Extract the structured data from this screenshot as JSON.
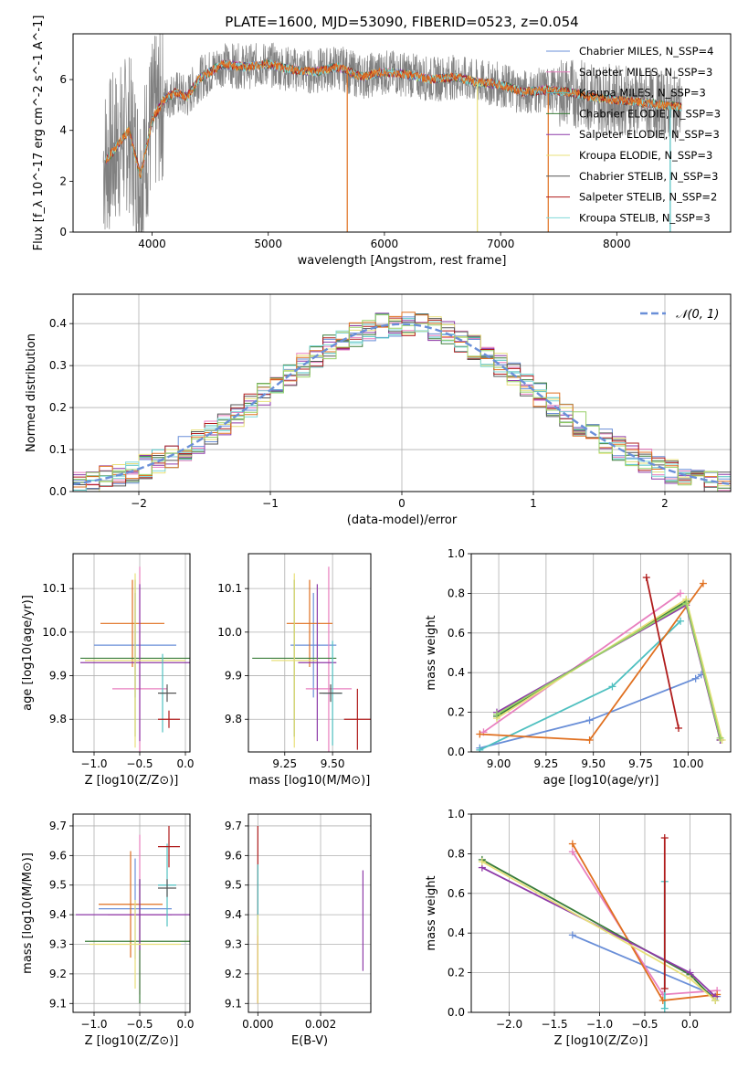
{
  "figure_title": "PLATE=1600, MJD=53090, FIBERID=0523, z=0.054",
  "series_colors": [
    "#6a8fd8",
    "#e87fbf",
    "#4fc0c0",
    "#3a7d3a",
    "#8e3aa8",
    "#e8e07a",
    "#555555",
    "#b01c1c",
    "#7fd8d8",
    "#e07020",
    "#98d068"
  ],
  "chart_data": [
    {
      "id": "spectrum",
      "type": "line",
      "title": "PLATE=1600, MJD=53090, FIBERID=0523, z=0.054",
      "xlabel": "wavelength [Angstrom, rest frame]",
      "ylabel": "Flux [f_λ 10^-17 erg cm^-2 s^-1 A^-1]",
      "xlim": [
        3320,
        8980
      ],
      "ylim": [
        0,
        7.8
      ],
      "xticks": [
        4000,
        5000,
        6000,
        7000,
        8000
      ],
      "yticks": [
        0,
        2,
        4,
        6
      ],
      "legend_position": "top-right",
      "legend": [
        "Chabrier MILES, N_SSP=4",
        "Salpeter MILES, N_SSP=3",
        "Kroupa MILES, N_SSP=3",
        "Chabrier ELODIE, N_SSP=3",
        "Salpeter ELODIE, N_SSP=3",
        "Kroupa ELODIE, N_SSP=3",
        "Chabrier STELIB, N_SSP=3",
        "Salpeter STELIB, N_SSP=2",
        "Kroupa STELIB, N_SSP=3"
      ],
      "legend_colors": [
        "#6a8fd8",
        "#e87fbf",
        "#4fc0c0",
        "#3a7d3a",
        "#8e3aa8",
        "#e8e07a",
        "#555555",
        "#b01c1c",
        "#7fd8d8"
      ],
      "continuum": {
        "x": [
          3600,
          3700,
          3800,
          3900,
          4000,
          4100,
          4200,
          4300,
          4400,
          4500,
          4600,
          4800,
          5000,
          5200,
          5400,
          5600,
          5800,
          6000,
          6200,
          6400,
          6600,
          6800,
          7000,
          7200,
          7400,
          7600,
          7800,
          8000,
          8200,
          8400,
          8600,
          8800
        ],
        "y": [
          2.8,
          3.4,
          4.0,
          2.2,
          4.4,
          5.2,
          5.5,
          5.3,
          6.0,
          6.3,
          6.6,
          6.5,
          6.6,
          6.4,
          6.3,
          6.5,
          6.1,
          6.3,
          6.2,
          6.0,
          6.1,
          5.9,
          5.8,
          5.5,
          5.6,
          5.5,
          5.3,
          5.2,
          5.1,
          5.0,
          4.9,
          4.8
        ]
      }
    },
    {
      "id": "residuals",
      "type": "step",
      "xlabel": "(data-model)/error",
      "ylabel": "Normed distribution",
      "xlim": [
        -2.5,
        2.5
      ],
      "ylim": [
        0,
        0.47
      ],
      "xticks": [
        -2,
        -1,
        0,
        1,
        2
      ],
      "xticklabels": [
        "−2",
        "−1",
        "0",
        "1",
        "2"
      ],
      "yticks": [
        0.0,
        0.1,
        0.2,
        0.3,
        0.4
      ],
      "yticklabels": [
        "0.0",
        "0.1",
        "0.2",
        "0.3",
        "0.4"
      ],
      "grid": true,
      "legend_position": "top-right",
      "legend": [
        "𝒩(0, 1)"
      ],
      "gaussian": {
        "mu": 0,
        "sigma": 1,
        "color": "#6a8fd8",
        "style": "dashed"
      }
    },
    {
      "id": "age_vs_Z",
      "type": "errorbar",
      "xlabel": "Z [log10(Z/Z⊙)]",
      "ylabel": "age  [log10(age/yr)]",
      "xlim": [
        -1.23,
        0.05
      ],
      "ylim": [
        9.725,
        10.18
      ],
      "xticks": [
        -1.0,
        -0.5,
        0.0
      ],
      "xticklabels": [
        "−1.0",
        "−0.5",
        "0.0"
      ],
      "yticks": [
        9.8,
        9.9,
        10.0,
        10.1
      ],
      "yticklabels": [
        "9.8",
        "9.9",
        "10.0",
        "10.1"
      ],
      "grid": true,
      "points": [
        {
          "x": -0.55,
          "xerr": 0.45,
          "y": 9.97,
          "yerr": 0.12,
          "color": "#6a8fd8"
        },
        {
          "x": -0.5,
          "xerr": 0.3,
          "y": 9.87,
          "yerr": 0.28,
          "color": "#e87fbf"
        },
        {
          "x": -0.58,
          "xerr": 0.35,
          "y": 10.02,
          "yerr": 0.1,
          "color": "#e07020"
        },
        {
          "x": -0.55,
          "xerr": 0.6,
          "y": 9.94,
          "yerr": 0.18,
          "color": "#3a7d3a"
        },
        {
          "x": -0.5,
          "xerr": 0.65,
          "y": 9.93,
          "yerr": 0.18,
          "color": "#8e3aa8"
        },
        {
          "x": -0.55,
          "xerr": 0.55,
          "y": 9.935,
          "yerr": 0.2,
          "color": "#e8e07a"
        },
        {
          "x": -0.25,
          "xerr": 0.03,
          "y": 9.86,
          "yerr": 0.09,
          "color": "#4fc0c0"
        },
        {
          "x": -0.18,
          "xerr": 0.12,
          "y": 9.8,
          "yerr": 0.02,
          "color": "#b01c1c"
        },
        {
          "x": -0.2,
          "xerr": 0.1,
          "y": 9.86,
          "yerr": 0.02,
          "color": "#555555"
        }
      ]
    },
    {
      "id": "age_vs_mass",
      "type": "errorbar",
      "xlabel": "mass [log10(M/M⊙)]",
      "ylabel": "",
      "xlim": [
        9.06,
        9.7
      ],
      "ylim": [
        9.725,
        10.18
      ],
      "xticks": [
        9.25,
        9.5
      ],
      "xticklabels": [
        "9.25",
        "9.50"
      ],
      "yticks": [
        9.8,
        9.9,
        10.0,
        10.1
      ],
      "yticklabels": [
        "9.8",
        "9.9",
        "10.0",
        "10.1"
      ],
      "grid": true,
      "points": [
        {
          "x": 9.4,
          "xerr": 0.12,
          "y": 9.97,
          "yerr": 0.12,
          "color": "#6a8fd8"
        },
        {
          "x": 9.48,
          "xerr": 0.12,
          "y": 9.87,
          "yerr": 0.28,
          "color": "#e87fbf"
        },
        {
          "x": 9.38,
          "xerr": 0.12,
          "y": 10.02,
          "yerr": 0.1,
          "color": "#e07020"
        },
        {
          "x": 9.3,
          "xerr": 0.22,
          "y": 9.94,
          "yerr": 0.18,
          "color": "#3a7d3a"
        },
        {
          "x": 9.42,
          "xerr": 0.1,
          "y": 9.93,
          "yerr": 0.18,
          "color": "#8e3aa8"
        },
        {
          "x": 9.3,
          "xerr": 0.12,
          "y": 9.935,
          "yerr": 0.2,
          "color": "#e8e07a"
        },
        {
          "x": 9.5,
          "xerr": 0.05,
          "y": 9.86,
          "yerr": 0.12,
          "color": "#4fc0c0"
        },
        {
          "x": 9.63,
          "xerr": 0.07,
          "y": 9.8,
          "yerr": 0.07,
          "color": "#b01c1c"
        },
        {
          "x": 9.49,
          "xerr": 0.06,
          "y": 9.86,
          "yerr": 0.02,
          "color": "#555555"
        }
      ]
    },
    {
      "id": "massweight_vs_age",
      "type": "line",
      "xlabel": "age  [log10(age/yr)]",
      "ylabel": "mass weight",
      "xlim": [
        8.855,
        10.225
      ],
      "ylim": [
        0.0,
        1.0
      ],
      "xticks": [
        9.0,
        9.25,
        9.5,
        9.75,
        10.0
      ],
      "xticklabels": [
        "9.00",
        "9.25",
        "9.50",
        "9.75",
        "10.00"
      ],
      "yticks": [
        0.0,
        0.2,
        0.4,
        0.6,
        0.8,
        1.0
      ],
      "yticklabels": [
        "0.0",
        "0.2",
        "0.4",
        "0.6",
        "0.8",
        "1.0"
      ],
      "grid": true,
      "series": [
        {
          "color": "#6a8fd8",
          "x": [
            8.9,
            9.48,
            10.04,
            10.07
          ],
          "y": [
            0.02,
            0.16,
            0.37,
            0.39
          ]
        },
        {
          "color": "#e87fbf",
          "x": [
            8.92,
            9.96
          ],
          "y": [
            0.1,
            0.8
          ]
        },
        {
          "color": "#4fc0c0",
          "x": [
            8.9,
            9.6,
            9.96
          ],
          "y": [
            0.01,
            0.33,
            0.66
          ]
        },
        {
          "color": "#e07020",
          "x": [
            8.9,
            9.48,
            10.08
          ],
          "y": [
            0.09,
            0.06,
            0.85
          ]
        },
        {
          "color": "#3a7d3a",
          "x": [
            8.99,
            9.99,
            10.17
          ],
          "y": [
            0.18,
            0.76,
            0.06
          ]
        },
        {
          "color": "#8e3aa8",
          "x": [
            8.99,
            9.99,
            10.17
          ],
          "y": [
            0.2,
            0.74,
            0.06
          ]
        },
        {
          "color": "#e8e07a",
          "x": [
            8.99,
            9.99,
            10.18
          ],
          "y": [
            0.17,
            0.77,
            0.06
          ]
        },
        {
          "color": "#98d068",
          "x": [
            8.99,
            9.99,
            10.17
          ],
          "y": [
            0.19,
            0.75,
            0.07
          ]
        },
        {
          "color": "#b01c1c",
          "x": [
            9.78,
            9.95
          ],
          "y": [
            0.88,
            0.12
          ]
        }
      ]
    },
    {
      "id": "mass_vs_Z",
      "type": "errorbar",
      "xlabel": "Z [log10(Z/Z⊙)]",
      "ylabel": "mass [log10(M/M⊙)]",
      "xlim": [
        -1.23,
        0.05
      ],
      "ylim": [
        9.07,
        9.74
      ],
      "xticks": [
        -1.0,
        -0.5,
        0.0
      ],
      "xticklabels": [
        "−1.0",
        "−0.5",
        "0.0"
      ],
      "yticks": [
        9.1,
        9.2,
        9.3,
        9.4,
        9.5,
        9.6,
        9.7
      ],
      "yticklabels": [
        "9.1",
        "9.2",
        "9.3",
        "9.4",
        "9.5",
        "9.6",
        "9.7"
      ],
      "grid": true,
      "points": [
        {
          "x": -0.55,
          "xerr": 0.4,
          "y": 9.42,
          "yerr": 0.17,
          "color": "#6a8fd8"
        },
        {
          "x": -0.5,
          "xerr": 0.35,
          "y": 9.4,
          "yerr": 0.27,
          "color": "#e87fbf"
        },
        {
          "x": -0.6,
          "xerr": 0.35,
          "y": 9.435,
          "yerr": 0.18,
          "color": "#e07020"
        },
        {
          "x": -0.5,
          "xerr": 0.6,
          "y": 9.31,
          "yerr": 0.21,
          "color": "#3a7d3a"
        },
        {
          "x": -0.5,
          "xerr": 0.7,
          "y": 9.4,
          "yerr": 0.12,
          "color": "#8e3aa8"
        },
        {
          "x": -0.55,
          "xerr": 0.5,
          "y": 9.3,
          "yerr": 0.15,
          "color": "#e8e07a"
        },
        {
          "x": -0.2,
          "xerr": 0.1,
          "y": 9.5,
          "yerr": 0.14,
          "color": "#4fc0c0"
        },
        {
          "x": -0.18,
          "xerr": 0.12,
          "y": 9.63,
          "yerr": 0.07,
          "color": "#b01c1c"
        },
        {
          "x": -0.2,
          "xerr": 0.1,
          "y": 9.49,
          "yerr": 0.03,
          "color": "#555555"
        }
      ]
    },
    {
      "id": "ebv_vs_mass",
      "type": "errorbar",
      "xlabel": "E(B-V)",
      "ylabel": "",
      "xlim": [
        -0.0003,
        0.0036
      ],
      "ylim": [
        9.07,
        9.74
      ],
      "xticks": [
        0.0,
        0.002
      ],
      "xticklabels": [
        "0.000",
        "0.002"
      ],
      "yticks": [
        9.1,
        9.2,
        9.3,
        9.4,
        9.5,
        9.6,
        9.7
      ],
      "yticklabels": [
        "9.1",
        "9.2",
        "9.3",
        "9.4",
        "9.5",
        "9.6",
        "9.7"
      ],
      "grid": true,
      "points": [
        {
          "x": 0.0,
          "xerr": 0,
          "y": 9.4,
          "yerr": 0.3,
          "color": "#b01c1c"
        },
        {
          "x": 0.0,
          "xerr": 0,
          "y": 9.45,
          "yerr": 0.12,
          "color": "#4fc0c0"
        },
        {
          "x": 0.0,
          "xerr": 0,
          "y": 9.25,
          "yerr": 0.15,
          "color": "#e8e07a"
        },
        {
          "x": 0.00335,
          "xerr": 0,
          "y": 9.38,
          "yerr": 0.17,
          "color": "#8e3aa8"
        }
      ]
    },
    {
      "id": "massweight_vs_Z",
      "type": "line",
      "xlabel": "Z [log10(Z/Z⊙)]",
      "ylabel": "mass weight",
      "xlim": [
        -2.42,
        0.45
      ],
      "ylim": [
        0.0,
        1.0
      ],
      "xticks": [
        -2.0,
        -1.5,
        -1.0,
        -0.5,
        0.0
      ],
      "xticklabels": [
        "−2.0",
        "−1.5",
        "−1.0",
        "−0.5",
        "0.0"
      ],
      "yticks": [
        0.0,
        0.2,
        0.4,
        0.6,
        0.8,
        1.0
      ],
      "yticklabels": [
        "0.0",
        "0.2",
        "0.4",
        "0.6",
        "0.8",
        "1.0"
      ],
      "grid": true,
      "series": [
        {
          "color": "#6a8fd8",
          "x": [
            -1.3,
            0.3
          ],
          "y": [
            0.39,
            0.08
          ]
        },
        {
          "color": "#e87fbf",
          "x": [
            -1.3,
            -0.3,
            0.3
          ],
          "y": [
            0.81,
            0.09,
            0.11
          ]
        },
        {
          "color": "#4fc0c0",
          "x": [
            -0.28,
            -0.28
          ],
          "y": [
            0.02,
            0.66
          ]
        },
        {
          "color": "#e07020",
          "x": [
            -1.3,
            -0.3,
            0.3
          ],
          "y": [
            0.85,
            0.06,
            0.09
          ]
        },
        {
          "color": "#3a7d3a",
          "x": [
            -2.3,
            0.0,
            0.28
          ],
          "y": [
            0.77,
            0.19,
            0.06
          ]
        },
        {
          "color": "#8e3aa8",
          "x": [
            -2.3,
            0.0,
            0.28
          ],
          "y": [
            0.73,
            0.2,
            0.08
          ]
        },
        {
          "color": "#e8e07a",
          "x": [
            -2.3,
            0.0,
            0.28
          ],
          "y": [
            0.76,
            0.17,
            0.06
          ]
        },
        {
          "color": "#b01c1c",
          "x": [
            -0.28,
            -0.28
          ],
          "y": [
            0.12,
            0.88
          ]
        }
      ]
    }
  ]
}
